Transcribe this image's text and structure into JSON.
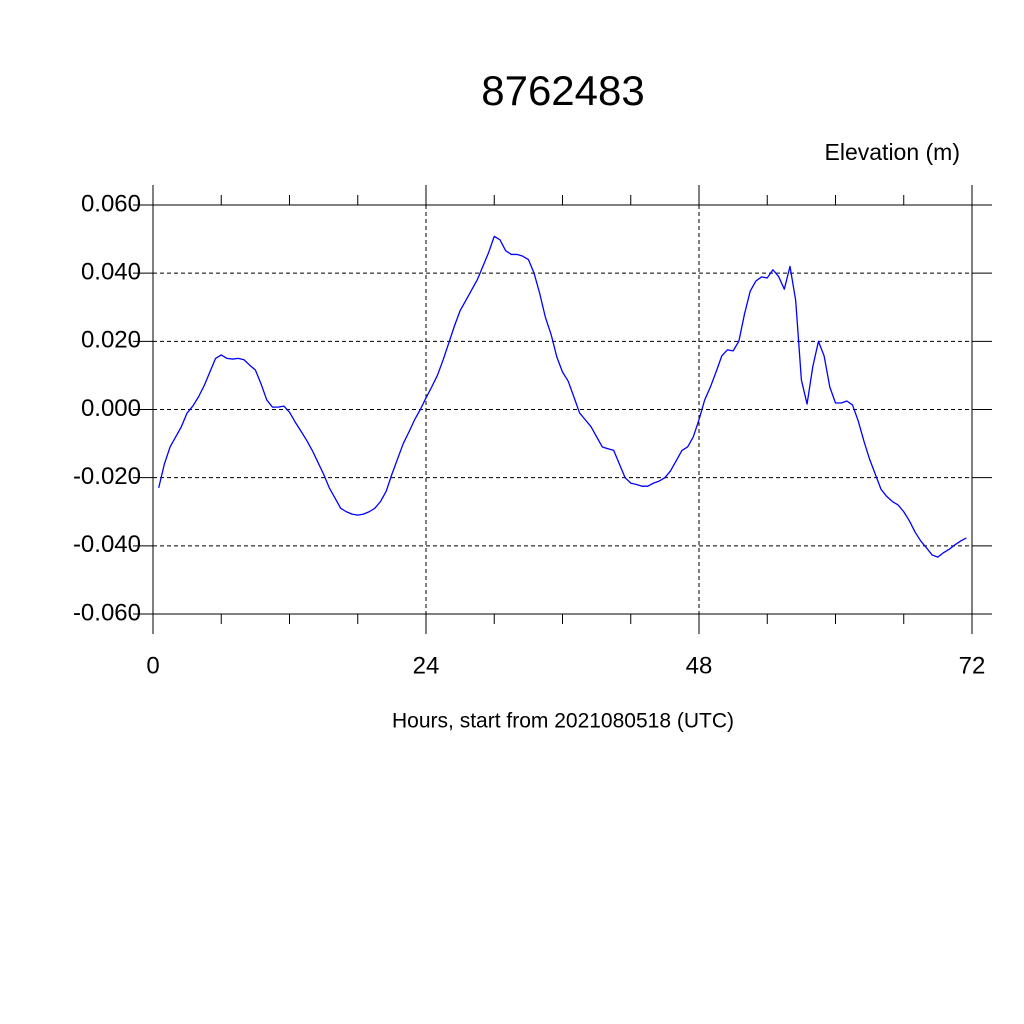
{
  "chart_data": {
    "type": "line",
    "title": "8762483",
    "subtitle": "Elevation (m)",
    "x_label": "Hours, start from 2021080518 (UTC)",
    "x": [
      0.5,
      1,
      1.5,
      2,
      2.5,
      3,
      3.5,
      4,
      4.5,
      5,
      5.5,
      6,
      6.5,
      7,
      7.5,
      8,
      8.5,
      9,
      9.5,
      10,
      10.5,
      11,
      11.5,
      12,
      12.5,
      13,
      13.5,
      14,
      14.5,
      15,
      15.5,
      16,
      16.5,
      17,
      17.5,
      18,
      18.5,
      19,
      19.5,
      20,
      20.5,
      21,
      21.5,
      22,
      22.5,
      23,
      23.5,
      24,
      24.5,
      25,
      25.5,
      26,
      26.5,
      27,
      27.5,
      28,
      28.5,
      29,
      29.5,
      30,
      30.5,
      31,
      31.5,
      32,
      32.5,
      33,
      33.5,
      34,
      34.5,
      35,
      35.5,
      36,
      36.5,
      37,
      37.5,
      38,
      38.5,
      39,
      39.5,
      40,
      40.5,
      41,
      41.5,
      42,
      42.5,
      43,
      43.5,
      44,
      44.5,
      45,
      45.5,
      46,
      46.5,
      47,
      47.5,
      48,
      48.5,
      49,
      49.5,
      50,
      50.5,
      51,
      51.5,
      52,
      52.5,
      53,
      53.5,
      54,
      54.5,
      55,
      55.5,
      56,
      56.5,
      57,
      57.5,
      58,
      58.5,
      59,
      59.5,
      60,
      60.5,
      61,
      61.5,
      62,
      62.5,
      63,
      63.5,
      64,
      64.5,
      65,
      65.5,
      66,
      66.5,
      67,
      67.5,
      68,
      68.5,
      69,
      69.5,
      70,
      70.5,
      71,
      71.5
    ],
    "series": [
      {
        "color": "#0000ff",
        "values": [
          -0.023,
          -0.016,
          -0.011,
          -0.008,
          -0.005,
          -0.001,
          0.001,
          0.0037,
          0.007,
          0.011,
          0.015,
          0.016,
          0.015,
          0.0148,
          0.015,
          0.0146,
          0.013,
          0.0116,
          0.0075,
          0.0028,
          0.0007,
          0.0007,
          0.001,
          -0.0008,
          -0.0037,
          -0.0063,
          -0.009,
          -0.012,
          -0.0155,
          -0.019,
          -0.023,
          -0.026,
          -0.029,
          -0.03,
          -0.0307,
          -0.031,
          -0.0307,
          -0.03,
          -0.029,
          -0.027,
          -0.024,
          -0.019,
          -0.0145,
          -0.01,
          -0.0066,
          -0.003,
          0.0,
          0.0034,
          0.0066,
          0.01,
          0.0145,
          0.0195,
          0.0245,
          0.029,
          0.032,
          0.035,
          0.038,
          0.042,
          0.046,
          0.0508,
          0.0498,
          0.0466,
          0.0455,
          0.0455,
          0.045,
          0.044,
          0.04,
          0.034,
          0.027,
          0.022,
          0.0154,
          0.011,
          0.0083,
          0.0037,
          -0.001,
          -0.003,
          -0.005,
          -0.008,
          -0.011,
          -0.0115,
          -0.012,
          -0.016,
          -0.02,
          -0.0216,
          -0.022,
          -0.0225,
          -0.0225,
          -0.0216,
          -0.021,
          -0.02,
          -0.018,
          -0.015,
          -0.012,
          -0.011,
          -0.008,
          -0.003,
          0.0028,
          0.0066,
          0.011,
          0.0157,
          0.0175,
          0.0172,
          0.02,
          0.028,
          0.0347,
          0.0377,
          0.0389,
          0.0386,
          0.041,
          0.039,
          0.0353,
          0.042,
          0.032,
          0.0087,
          0.0016,
          0.0125,
          0.02,
          0.0157,
          0.0066,
          0.0019,
          0.0019,
          0.0025,
          0.0013,
          -0.0034,
          -0.0093,
          -0.0146,
          -0.019,
          -0.0234,
          -0.0255,
          -0.027,
          -0.028,
          -0.03,
          -0.0327,
          -0.036,
          -0.0386,
          -0.0406,
          -0.0427,
          -0.0433,
          -0.042,
          -0.041,
          -0.0397,
          -0.0386,
          -0.0377
        ]
      }
    ],
    "xlim": [
      0,
      72
    ],
    "xticks": [
      0,
      24,
      48,
      72
    ],
    "xminorticks": [
      6,
      12,
      18,
      30,
      36,
      42,
      54,
      60,
      66
    ],
    "ylim": [
      -0.06,
      0.06
    ],
    "yticks": [
      {
        "value": -0.06,
        "label": "-0.060"
      },
      {
        "value": -0.04,
        "label": "-0.040"
      },
      {
        "value": -0.02,
        "label": "-0.020"
      },
      {
        "value": 0,
        "label": "0.000"
      },
      {
        "value": 0.02,
        "label": "0.020"
      },
      {
        "value": 0.04,
        "label": "0.040"
      },
      {
        "value": 0.06,
        "label": "0.060"
      }
    ],
    "grid": true
  }
}
